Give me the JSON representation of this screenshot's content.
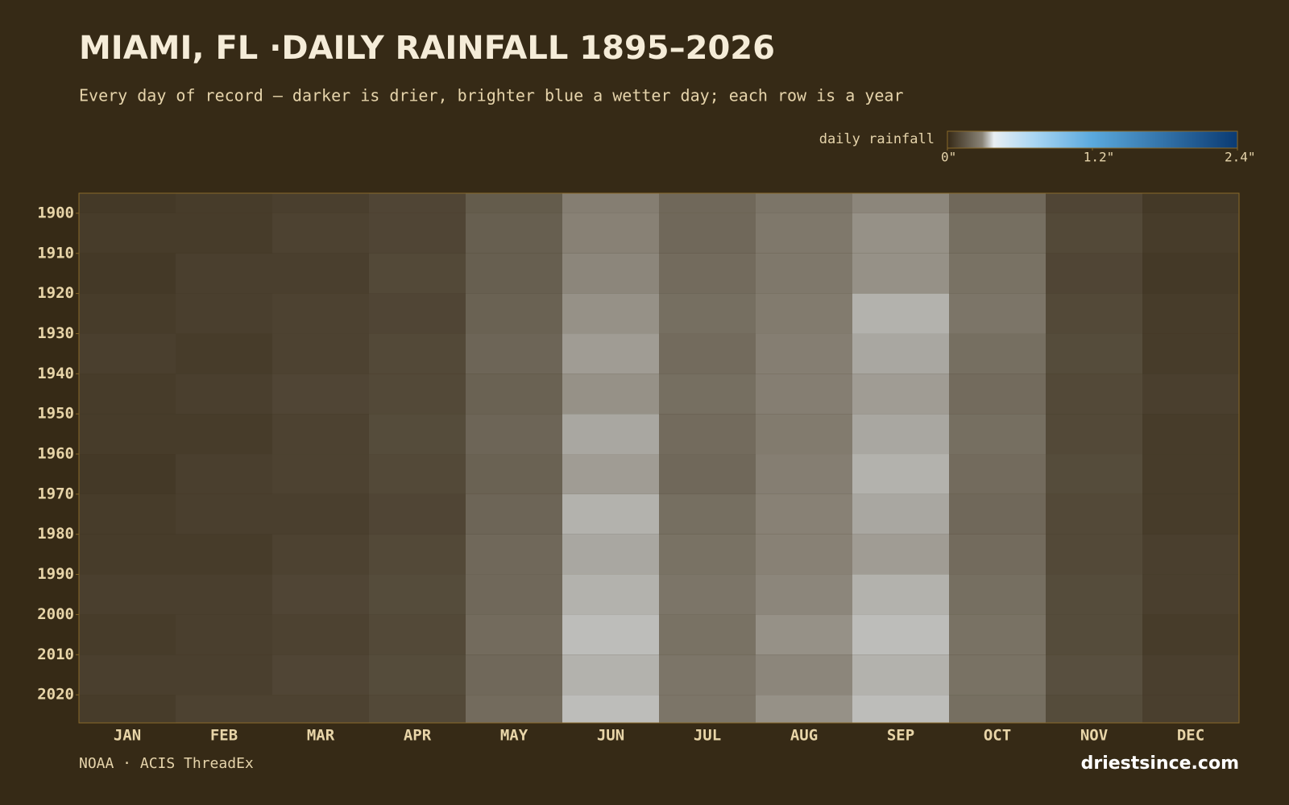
{
  "chart_data": {
    "type": "heatmap",
    "title": "MIAMI, FL ·DAILY RAINFALL 1895–2026",
    "subtitle": "Every day of record — darker is drier, brighter blue a wetter day; each row is a year",
    "colorbar_label": "daily rainfall",
    "clim": [
      0,
      2.4
    ],
    "cticks": [
      {
        "value": 0,
        "label": "0\""
      },
      {
        "value": 1.2,
        "label": "1.2\""
      },
      {
        "value": 2.4,
        "label": "2.4\""
      }
    ],
    "colorscale": [
      [
        0,
        "#352916"
      ],
      [
        0.12,
        "#8a8478"
      ],
      [
        0.16,
        "#e8eef2"
      ],
      [
        0.3,
        "#a9d6f2"
      ],
      [
        0.5,
        "#5aa9dd"
      ],
      [
        1,
        "#0a3a72"
      ]
    ],
    "categories": [
      "JAN",
      "FEB",
      "MAR",
      "APR",
      "MAY",
      "JUN",
      "JUL",
      "AUG",
      "SEP",
      "OCT",
      "NOV",
      "DEC"
    ],
    "year_bins": [
      1895,
      1900,
      1910,
      1920,
      1930,
      1940,
      1950,
      1960,
      1970,
      1980,
      1990,
      2000,
      2010,
      2020,
      2027
    ],
    "ylim": [
      1895,
      2027
    ],
    "yticks": [
      1900,
      1910,
      1920,
      1930,
      1940,
      1950,
      1960,
      1970,
      1980,
      1990,
      2000,
      2010,
      2020
    ],
    "values": [
      [
        0.05,
        0.06,
        0.07,
        0.09,
        0.16,
        0.27,
        0.2,
        0.24,
        0.29,
        0.2,
        0.09,
        0.05
      ],
      [
        0.06,
        0.06,
        0.08,
        0.09,
        0.17,
        0.28,
        0.2,
        0.25,
        0.3,
        0.22,
        0.1,
        0.06
      ],
      [
        0.05,
        0.07,
        0.07,
        0.1,
        0.17,
        0.29,
        0.21,
        0.25,
        0.3,
        0.23,
        0.09,
        0.05
      ],
      [
        0.06,
        0.07,
        0.08,
        0.09,
        0.18,
        0.3,
        0.22,
        0.26,
        0.33,
        0.24,
        0.1,
        0.06
      ],
      [
        0.07,
        0.06,
        0.08,
        0.1,
        0.19,
        0.31,
        0.21,
        0.27,
        0.32,
        0.22,
        0.11,
        0.06
      ],
      [
        0.06,
        0.07,
        0.09,
        0.1,
        0.18,
        0.3,
        0.22,
        0.27,
        0.31,
        0.21,
        0.1,
        0.07
      ],
      [
        0.06,
        0.06,
        0.08,
        0.11,
        0.19,
        0.32,
        0.21,
        0.26,
        0.32,
        0.22,
        0.1,
        0.06
      ],
      [
        0.05,
        0.07,
        0.08,
        0.1,
        0.18,
        0.31,
        0.2,
        0.27,
        0.33,
        0.21,
        0.11,
        0.06
      ],
      [
        0.06,
        0.07,
        0.07,
        0.09,
        0.19,
        0.33,
        0.22,
        0.28,
        0.32,
        0.2,
        0.1,
        0.06
      ],
      [
        0.06,
        0.06,
        0.08,
        0.1,
        0.2,
        0.32,
        0.23,
        0.28,
        0.31,
        0.21,
        0.1,
        0.07
      ],
      [
        0.07,
        0.07,
        0.09,
        0.11,
        0.2,
        0.33,
        0.24,
        0.29,
        0.33,
        0.22,
        0.11,
        0.07
      ],
      [
        0.06,
        0.07,
        0.08,
        0.1,
        0.21,
        0.34,
        0.23,
        0.3,
        0.34,
        0.23,
        0.11,
        0.06
      ],
      [
        0.07,
        0.07,
        0.09,
        0.11,
        0.2,
        0.33,
        0.24,
        0.29,
        0.33,
        0.23,
        0.12,
        0.07
      ],
      [
        0.06,
        0.08,
        0.08,
        0.1,
        0.21,
        0.34,
        0.24,
        0.3,
        0.34,
        0.22,
        0.11,
        0.07
      ]
    ],
    "source": "NOAA · ACIS ThreadEx",
    "credit": "driestsince.com"
  }
}
